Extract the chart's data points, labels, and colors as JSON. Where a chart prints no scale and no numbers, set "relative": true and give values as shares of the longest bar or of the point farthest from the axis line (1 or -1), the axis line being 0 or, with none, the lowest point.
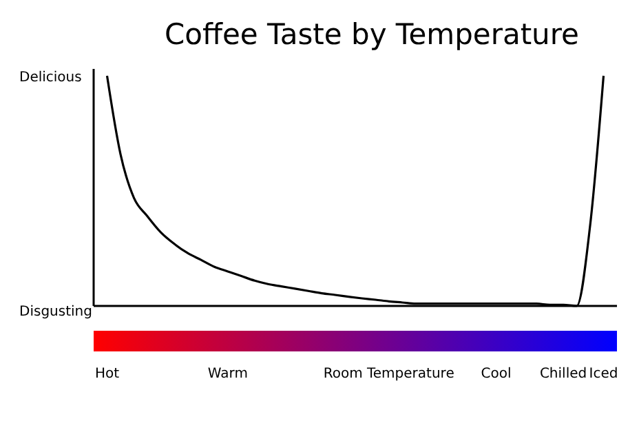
{
  "chart_data": {
    "type": "line",
    "title": "Coffee Taste by Temperature",
    "relative": true,
    "categories": [
      null,
      "Hot",
      null,
      null,
      null,
      null,
      null,
      null,
      null,
      null,
      "Warm",
      null,
      null,
      null,
      null,
      null,
      null,
      null,
      null,
      null,
      null,
      null,
      "Room Temperature",
      null,
      null,
      null,
      null,
      null,
      null,
      null,
      "Cool",
      null,
      null,
      null,
      null,
      "Chilled",
      null,
      null,
      "Iced",
      null
    ],
    "series": [
      {
        "color": "#000000",
        "values": [
          null,
          1,
          0.66,
          0.47,
          0.39,
          0.32,
          0.27,
          0.23,
          0.2,
          0.17,
          0.15,
          0.13,
          0.11,
          0.095,
          0.085,
          0.075,
          0.065,
          0.055,
          0.048,
          0.04,
          0.033,
          0.027,
          0.02,
          0.015,
          0.01,
          0.01,
          0.01,
          0.01,
          0.01,
          0.01,
          0.01,
          0.01,
          0.01,
          0.01,
          0.005,
          0.005,
          0,
          0.35,
          1,
          null
        ]
      }
    ],
    "annotations": [
      "Delicious",
      "Disgusting"
    ],
    "grid": false,
    "marker": "none",
    "line_style": "solid"
  }
}
